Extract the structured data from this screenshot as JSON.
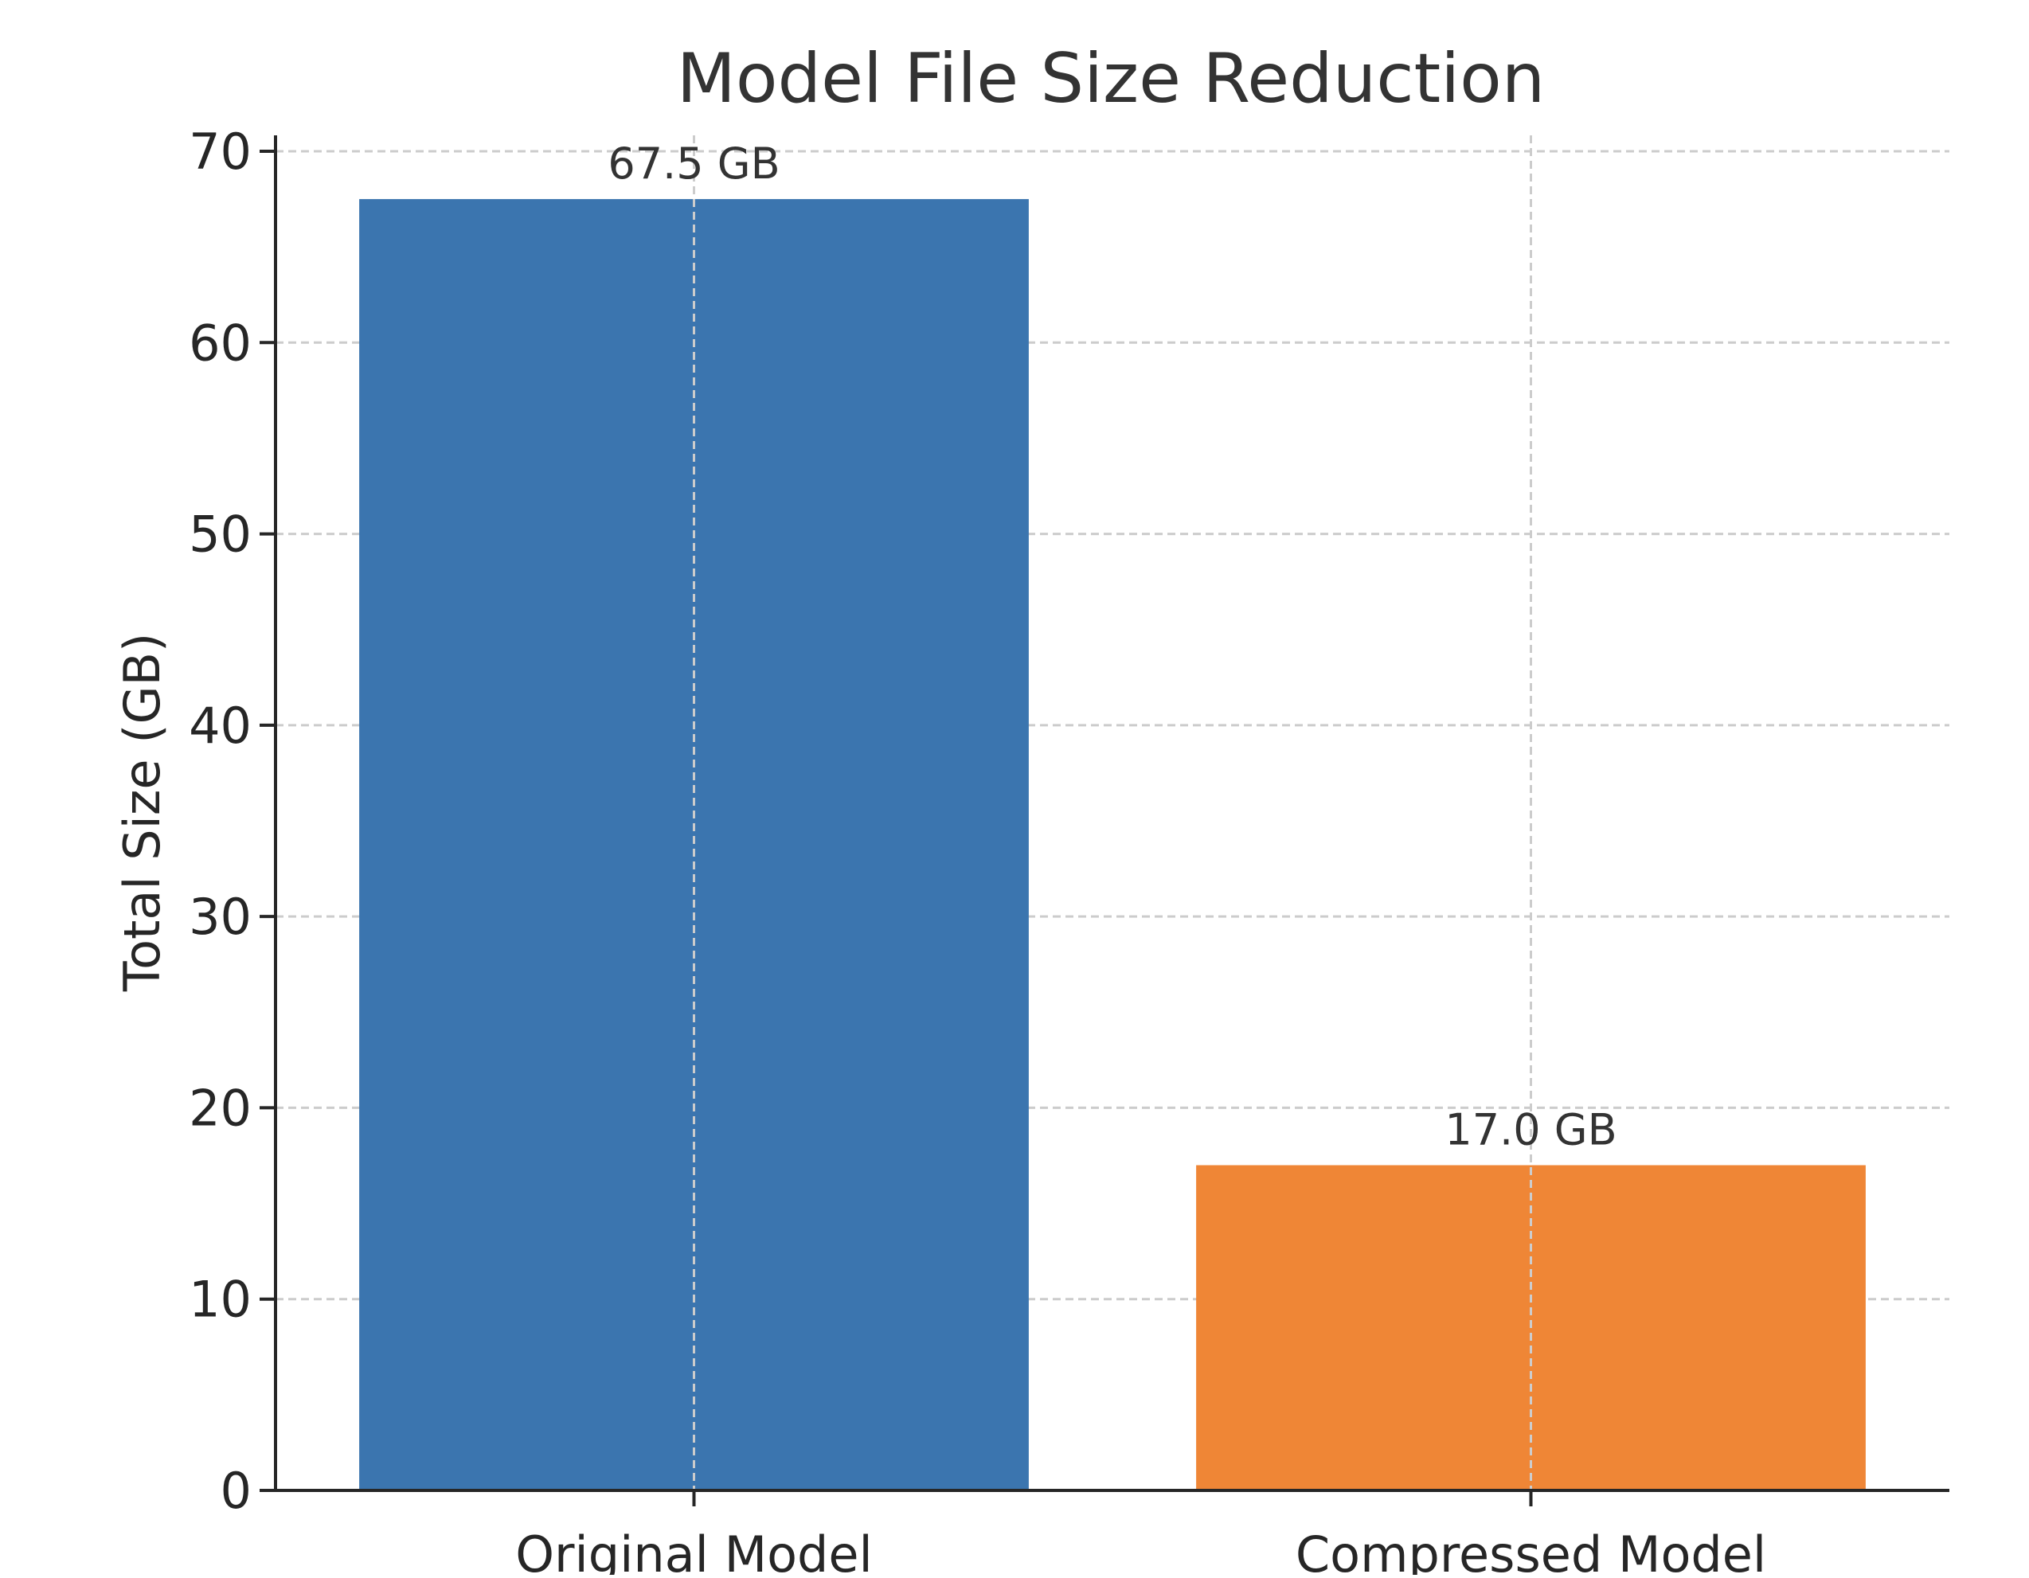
{
  "chart_data": {
    "type": "bar",
    "title": "Model File Size Reduction",
    "xlabel": "",
    "ylabel": "Total Size (GB)",
    "categories": [
      "Original Model",
      "Compressed Model"
    ],
    "values": [
      67.5,
      17.0
    ],
    "data_labels": [
      "67.5 GB",
      "17.0 GB"
    ],
    "ylim": [
      0,
      70
    ],
    "yticks": [
      0,
      10,
      20,
      30,
      40,
      50,
      60,
      70
    ],
    "grid": true,
    "colors": [
      "#3b75af",
      "#ef8636"
    ],
    "legend": "none"
  }
}
